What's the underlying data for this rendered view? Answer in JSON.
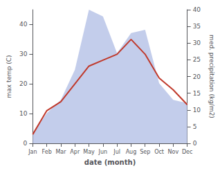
{
  "chart_data": {
    "type": "line",
    "xlabel": "date (month)",
    "ylabel": "max temp (C)",
    "y2label": "med. precipitation (kg/m2)",
    "categories": [
      "Jan",
      "Feb",
      "Mar",
      "Apr",
      "May",
      "Jun",
      "Jul",
      "Aug",
      "Sep",
      "Oct",
      "Nov",
      "Dec"
    ],
    "series": [
      {
        "type": "area",
        "color": "#b8c4e8",
        "axis": "y2",
        "values": [
          3,
          9,
          13,
          22,
          40,
          38,
          27,
          33,
          34,
          18,
          13,
          12
        ]
      },
      {
        "type": "line",
        "color": "#c0392b",
        "values": [
          3,
          11,
          14,
          20,
          26,
          28,
          30,
          35,
          30,
          22,
          18,
          13
        ]
      }
    ],
    "ylim": [
      0,
      45
    ],
    "yticks": [
      0,
      10,
      20,
      30,
      40
    ],
    "y2lim": [
      0,
      40
    ],
    "y2ticks": [
      0,
      5,
      10,
      15,
      20,
      25,
      30,
      35,
      40
    ],
    "grid": false
  }
}
